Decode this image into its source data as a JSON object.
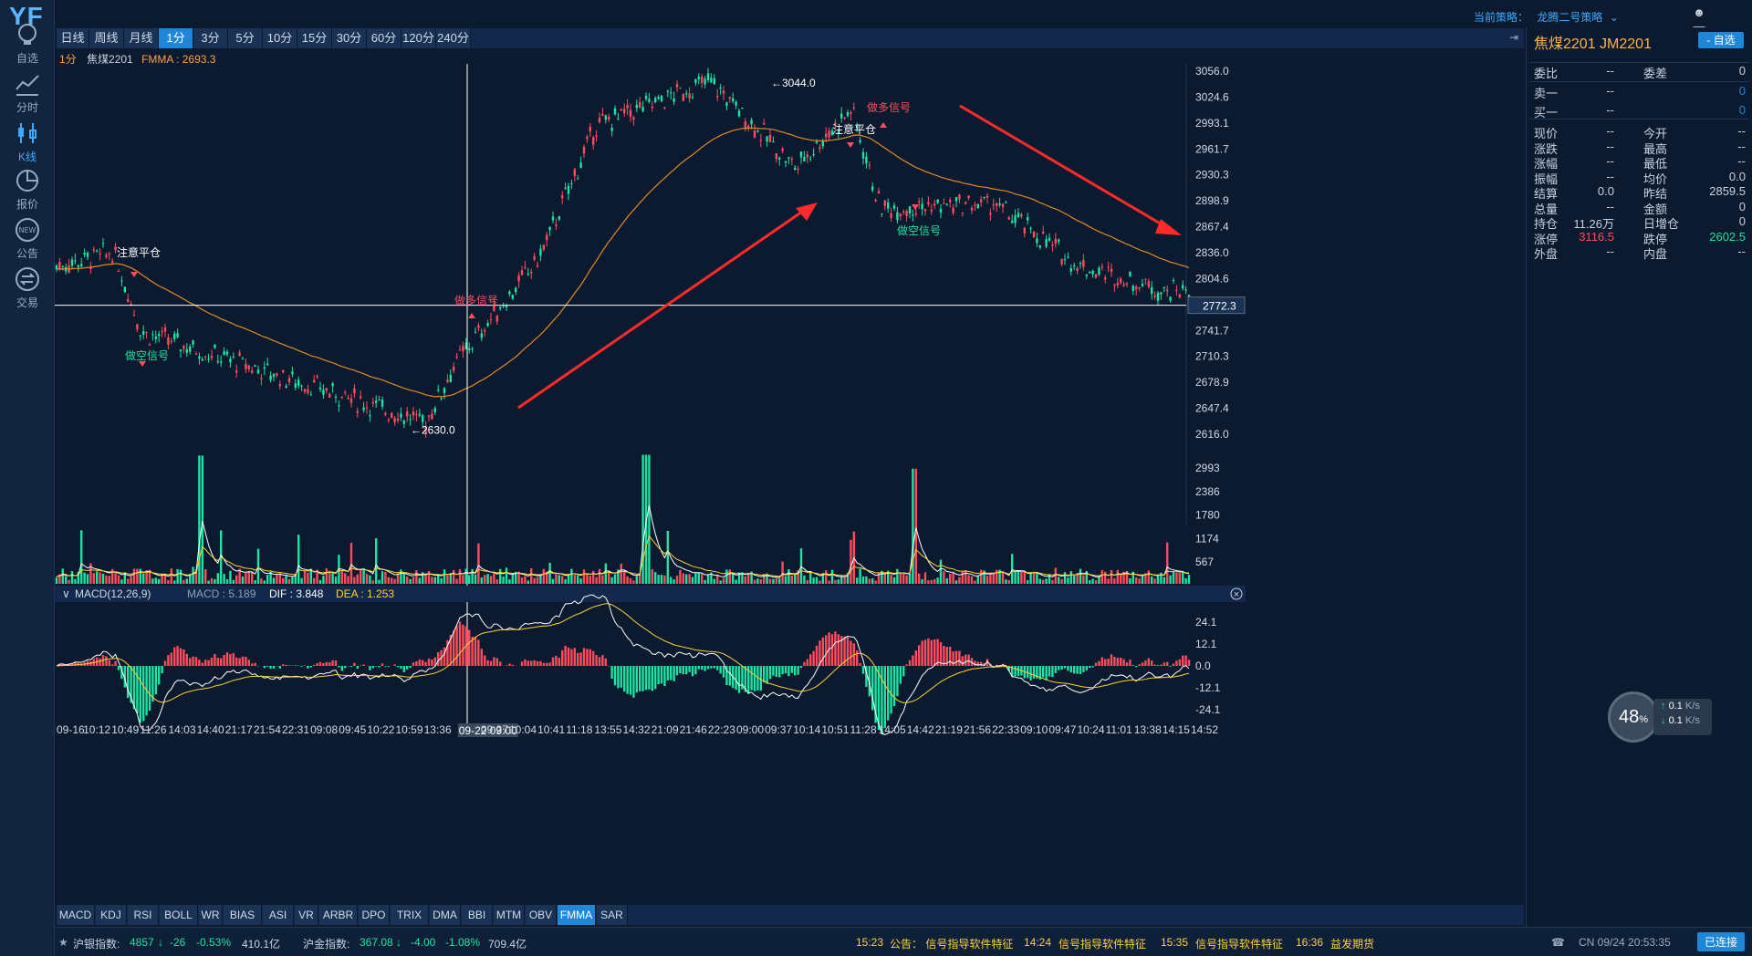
{
  "app": {
    "logo": "YF"
  },
  "sidebar": [
    {
      "label": "自选",
      "icon": "bulb-icon"
    },
    {
      "label": "分时",
      "icon": "line-chart-icon"
    },
    {
      "label": "K线",
      "icon": "candlestick-icon"
    },
    {
      "label": "报价",
      "icon": "pie-icon"
    },
    {
      "label": "公告",
      "icon": "new-badge-icon"
    },
    {
      "label": "交易",
      "icon": "exchange-icon"
    }
  ],
  "topbar": {
    "strategy_label": "当前策略：",
    "strategy_value": "龙腾二号策略"
  },
  "periods": [
    "日线",
    "周线",
    "月线",
    "1分",
    "3分",
    "5分",
    "10分",
    "15分",
    "30分",
    "60分",
    "120分",
    "240分"
  ],
  "active_period": "1分",
  "info_line": {
    "period": "1分",
    "symbol": "焦煤2201",
    "fmma": "FMMA : 2693.3"
  },
  "price_axis": [
    "3056.0",
    "3024.6",
    "2993.1",
    "2961.7",
    "2930.3",
    "2898.9",
    "2867.4",
    "2836.0",
    "2804.6",
    "2741.7",
    "2710.3",
    "2678.9",
    "2647.4",
    "2616.0"
  ],
  "crosshair_price": "2772.3",
  "volume_axis": [
    "2993",
    "2386",
    "1780",
    "1174",
    "567"
  ],
  "macd_header": {
    "title": "MACD(12,26,9)",
    "macd": "MACD : 5.189",
    "dif": "DIF : 3.848",
    "dea": "DEA : 1.253"
  },
  "macd_axis": [
    "24.1",
    "12.1",
    "0.0",
    "-12.1",
    "-24.1"
  ],
  "annotations": {
    "high": "←3044.0",
    "low": "←2630.0",
    "signal_close1": "注意平仓",
    "signal_short1": "做空信号",
    "signal_long1": "做多信号",
    "signal_close2": "注意平仓",
    "signal_long2": "做多信号",
    "signal_short2": "做空信号"
  },
  "time_axis": [
    "09-16",
    "10:12",
    "10:49",
    "11:26",
    "14:03",
    "14:40",
    "21:17",
    "21:54",
    "22:31",
    "09:08",
    "09:45",
    "10:22",
    "10:59",
    "13:36",
    "09-22 09:00",
    "09:27",
    "10:04",
    "10:41",
    "11:18",
    "13:55",
    "14:32",
    "21:09",
    "21:46",
    "22:23",
    "09:00",
    "09:37",
    "10:14",
    "10:51",
    "11:28",
    "14:05",
    "14:42",
    "21:19",
    "21:56",
    "22:33",
    "09:10",
    "09:47",
    "10:24",
    "11:01",
    "13:38",
    "14:15",
    "14:52"
  ],
  "indicators": [
    "MACD",
    "KDJ",
    "RSI",
    "BOLL",
    "WR",
    "BIAS",
    "ASI",
    "VR",
    "ARBR",
    "DPO",
    "TRIX",
    "DMA",
    "BBI",
    "MTM",
    "OBV",
    "FMMA",
    "SAR"
  ],
  "active_indicator": "FMMA",
  "right_panel": {
    "title": "焦煤2201  JM2201",
    "add_button": "- 自选",
    "dash": "--",
    "rows1": [
      {
        "l1": "委比",
        "v1": "--",
        "l2": "委差",
        "v2": "0"
      }
    ],
    "rows2": [
      {
        "l1": "卖一",
        "v1": "--",
        "v2": "0"
      },
      {
        "l1": "买一",
        "v1": "--",
        "v2": "0"
      }
    ],
    "rows3": [
      {
        "l1": "现价",
        "v1": "--",
        "l2": "今开",
        "v2": "--"
      },
      {
        "l1": "涨跌",
        "v1": "--",
        "l2": "最高",
        "v2": "--"
      },
      {
        "l1": "涨幅",
        "v1": "--",
        "l2": "最低",
        "v2": "--"
      },
      {
        "l1": "振幅",
        "v1": "--",
        "l2": "均价",
        "v2": "0.0"
      },
      {
        "l1": "结算",
        "v1": "0.0",
        "l2": "昨结",
        "v2": "2859.5"
      },
      {
        "l1": "总量",
        "v1": "--",
        "l2": "金额",
        "v2": "0"
      },
      {
        "l1": "持仓",
        "v1": "11.26万",
        "l2": "日增仓",
        "v2": "0"
      },
      {
        "l1": "涨停",
        "v1": "3116.5",
        "l2": "跌停",
        "v2": "2602.5"
      },
      {
        "l1": "外盘",
        "v1": "--",
        "l2": "内盘",
        "v2": "--"
      }
    ]
  },
  "speed": {
    "percent": "48",
    "unit": "%",
    "up": "0.1",
    "down": "0.1",
    "rate_unit": "K/s"
  },
  "status": {
    "idx1_label": "沪银指数:",
    "idx1_value": "4857",
    "idx1_change": "-26",
    "idx1_pct": "-0.53%",
    "idx1_amount": "410.1亿",
    "idx2_label": "沪金指数:",
    "idx2_value": "367.08",
    "idx2_change": "-4.00",
    "idx2_pct": "-1.08%",
    "idx2_amount": "709.4亿",
    "news1_time": "15:23",
    "news1_text": "公告：  信号指导软件特征",
    "news2_time": "14:24",
    "news2_text": "信号指导软件特征",
    "news3_time": "15:35",
    "news3_text": "信号指导软件特征",
    "news4_time": "16:36",
    "news4_text": "益发期货",
    "clock": "CN 09/24 20:53:35",
    "connect": "已连接"
  },
  "colors": {
    "up": "#ff4d5e",
    "down": "#1fe3a2",
    "fmma": "#e08a2a",
    "accent": "#1f86d8",
    "arrow": "#ff2a2a"
  },
  "chart_data": {
    "type": "candlestick",
    "symbol": "焦煤2201",
    "period": "1分",
    "ylim": [
      2616.0,
      3056.0
    ],
    "key_points": [
      {
        "x": "09-16",
        "price": 2820
      },
      {
        "x": "10:49",
        "price": 2836
      },
      {
        "x": "11:26",
        "price": 2740
      },
      {
        "x": "13:36",
        "price": 2630.0
      },
      {
        "x": "09-22 09:00",
        "price": 2700
      },
      {
        "x": "10:41",
        "price": 2830
      },
      {
        "x": "13:55",
        "price": 2990
      },
      {
        "x": "22:23",
        "price": 3044.0
      },
      {
        "x": "10:14",
        "price": 2940
      },
      {
        "x": "11:28",
        "price": 3010
      },
      {
        "x": "14:05",
        "price": 2890
      },
      {
        "x": "22:33",
        "price": 2895
      },
      {
        "x": "10:24",
        "price": 2820
      },
      {
        "x": "14:15",
        "price": 2790
      }
    ],
    "fmma_last": 2693.3,
    "volume_ylim": [
      0,
      3400
    ],
    "macd_ylim": [
      -30,
      30
    ]
  }
}
